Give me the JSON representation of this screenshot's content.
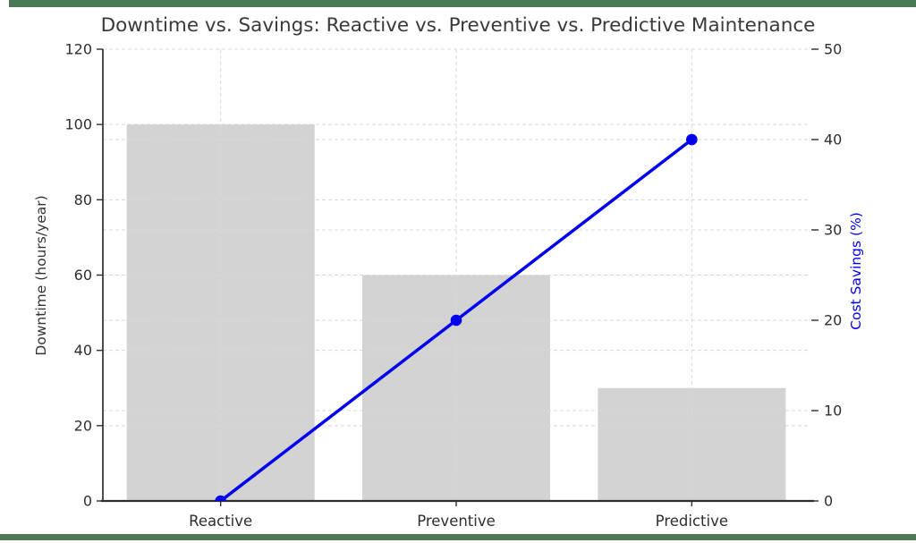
{
  "chart_data": {
    "type": "bar+line",
    "title": "Downtime vs. Savings: Reactive vs. Preventive vs. Predictive Maintenance",
    "categories": [
      "Reactive",
      "Preventive",
      "Predictive"
    ],
    "series": [
      {
        "name": "Downtime (hours/year)",
        "type": "bar",
        "axis": "left",
        "values": [
          100,
          60,
          30
        ],
        "color": "#d3d3d3"
      },
      {
        "name": "Cost Savings (%)",
        "type": "line",
        "axis": "right",
        "values": [
          0,
          20,
          40
        ],
        "color": "#0000ee"
      }
    ],
    "left_axis": {
      "label": "Downtime (hours/year)",
      "range": [
        0,
        120
      ],
      "ticks": [
        0,
        20,
        40,
        60,
        80,
        100,
        120
      ],
      "label_color": "#333333"
    },
    "right_axis": {
      "label": "Cost Savings (%)",
      "range": [
        0,
        50
      ],
      "ticks": [
        0,
        10,
        20,
        30,
        40,
        50
      ],
      "label_color": "#0000ee"
    },
    "grid": true,
    "grid_style": "dashed",
    "legend": "none",
    "text_color": "#2e2e2e",
    "grid_color": "#d8d8d8",
    "spine_color": "#2e2e2e",
    "frame": {
      "top_bar_color": "#4b7955",
      "bottom_bar_color": "#4b7955"
    }
  }
}
